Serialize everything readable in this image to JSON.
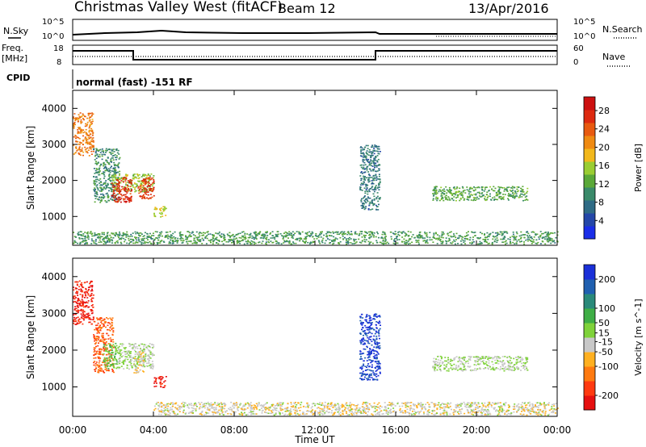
{
  "header": {
    "station": "Christmas Valley West (fitACF)",
    "beam": "Beam 12",
    "date": "13/Apr/2016"
  },
  "noise_panel": {
    "left_label": "N.Sky",
    "right_label": "N.Search",
    "left_ticks": [
      "10^5",
      "10^0"
    ],
    "right_ticks": [
      "10^5",
      "10^0"
    ]
  },
  "freq_panel": {
    "left_label_1": "Freq.",
    "left_label_2": "[MHz]",
    "right_label": "Nave",
    "left_ticks": [
      "18",
      "8"
    ],
    "right_ticks": [
      "60",
      "0"
    ]
  },
  "cpid": {
    "label": "CPID",
    "value": "normal (fast) -151 RF"
  },
  "x_axis": {
    "label": "Time UT",
    "ticks": [
      "00:00",
      "04:00",
      "08:00",
      "12:00",
      "16:00",
      "20:00",
      "00:00"
    ]
  },
  "colors": {
    "power_scale": [
      "#1a2ee8",
      "#2447a8",
      "#2f6b85",
      "#3a8a6a",
      "#5aa838",
      "#9acd32",
      "#f2b81c",
      "#ef8a12",
      "#e85a10",
      "#dd2a10",
      "#cc1010"
    ],
    "velocity_scale": [
      "#e61010",
      "#ff3a10",
      "#ff7a10",
      "#ffb020",
      "#c8c8c8",
      "#7fd23a",
      "#3fae46",
      "#2a8a7a",
      "#2060b0",
      "#1a30d8"
    ]
  },
  "chart_data": [
    {
      "type": "heatmap",
      "title": "Power",
      "xlabel": "Time UT",
      "ylabel": "Slant Range [km]",
      "xlim": [
        "00:00",
        "24:00"
      ],
      "ylim": [
        200,
        4500
      ],
      "yticks": [
        1000,
        2000,
        3000,
        4000
      ],
      "colorbar": {
        "label": "Power [dB]",
        "ticks": [
          4,
          8,
          12,
          16,
          20,
          24,
          28
        ],
        "range": [
          0,
          31
        ]
      },
      "regions": [
        {
          "t": [
            0.0,
            1.0
          ],
          "r": [
            2700,
            3900
          ],
          "v": 22
        },
        {
          "t": [
            1.0,
            2.3
          ],
          "r": [
            1400,
            2900
          ],
          "v": 10
        },
        {
          "t": [
            1.9,
            4.0
          ],
          "r": [
            1700,
            2200
          ],
          "v": 15
        },
        {
          "t": [
            1.9,
            2.9
          ],
          "r": [
            1400,
            2100
          ],
          "v": 27
        },
        {
          "t": [
            3.2,
            4.0
          ],
          "r": [
            1500,
            2100
          ],
          "v": 26
        },
        {
          "t": [
            4.0,
            4.6
          ],
          "r": [
            1000,
            1300
          ],
          "v": 17
        },
        {
          "t": [
            14.2,
            15.2
          ],
          "r": [
            1200,
            3000
          ],
          "v": 8
        },
        {
          "t": [
            17.8,
            22.5
          ],
          "r": [
            1450,
            1850
          ],
          "v": 12
        },
        {
          "t": [
            0.0,
            24.0
          ],
          "r": [
            250,
            600
          ],
          "v": 11
        }
      ]
    },
    {
      "type": "heatmap",
      "title": "Velocity",
      "xlabel": "Time UT",
      "ylabel": "Slant Range [km]",
      "xlim": [
        "00:00",
        "24:00"
      ],
      "ylim": [
        200,
        4500
      ],
      "yticks": [
        1000,
        2000,
        3000,
        4000
      ],
      "colorbar": {
        "label": "Velocity [m s^-1]",
        "ticks": [
          -200,
          -100,
          -50,
          -15,
          15,
          50,
          100,
          200
        ],
        "range": [
          -250,
          250
        ]
      },
      "regions": [
        {
          "t": [
            0.0,
            1.0
          ],
          "r": [
            2700,
            3900
          ],
          "v": -200
        },
        {
          "t": [
            1.0,
            2.0
          ],
          "r": [
            1400,
            2900
          ],
          "v": -150
        },
        {
          "t": [
            1.5,
            2.2
          ],
          "r": [
            1500,
            2200
          ],
          "v": 40
        },
        {
          "t": [
            2.2,
            4.0
          ],
          "r": [
            1500,
            2200
          ],
          "v": 0
        },
        {
          "t": [
            3.0,
            3.5
          ],
          "r": [
            1400,
            2000
          ],
          "v": -40
        },
        {
          "t": [
            4.0,
            4.6
          ],
          "r": [
            1000,
            1300
          ],
          "v": -220
        },
        {
          "t": [
            14.2,
            15.2
          ],
          "r": [
            1200,
            3000
          ],
          "v": 210
        },
        {
          "t": [
            17.8,
            22.5
          ],
          "r": [
            1450,
            1850
          ],
          "v": 0
        },
        {
          "t": [
            4.0,
            24.0
          ],
          "r": [
            250,
            600
          ],
          "v": -30
        }
      ]
    }
  ]
}
